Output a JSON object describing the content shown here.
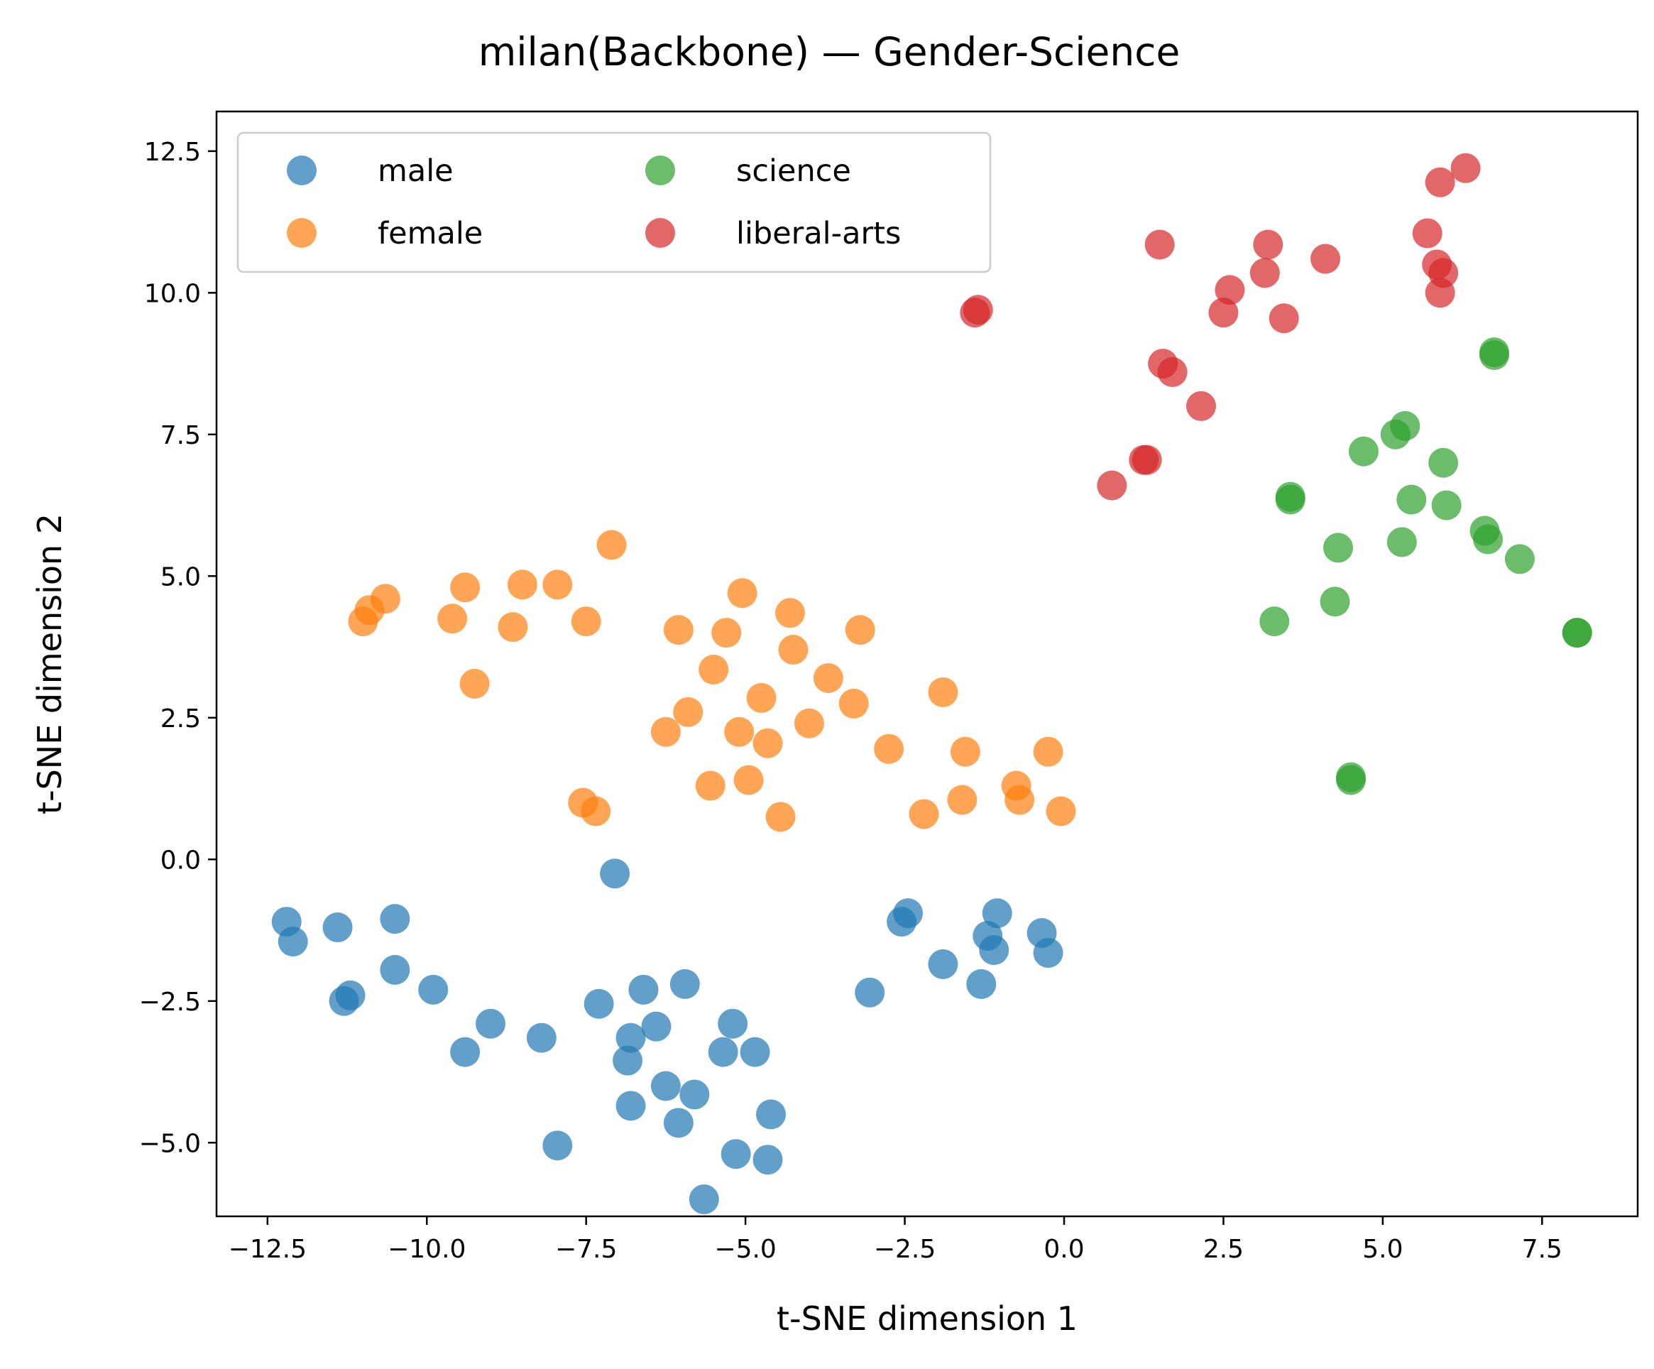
{
  "chart_data": {
    "type": "scatter",
    "title": "milan(Backbone) — Gender-Science",
    "xlabel": "t-SNE dimension 1",
    "ylabel": "t-SNE dimension 2",
    "xlim": [
      -13.3,
      9.0
    ],
    "ylim": [
      -6.3,
      13.2
    ],
    "xticks": [
      -12.5,
      -10.0,
      -7.5,
      -5.0,
      -2.5,
      0.0,
      2.5,
      5.0,
      7.5
    ],
    "xtick_labels": [
      "−12.5",
      "−10.0",
      "−7.5",
      "−5.0",
      "−2.5",
      "0.0",
      "2.5",
      "5.0",
      "7.5"
    ],
    "yticks": [
      -5.0,
      -2.5,
      0.0,
      2.5,
      5.0,
      7.5,
      10.0,
      12.5
    ],
    "ytick_labels": [
      "−5.0",
      "−2.5",
      "0.0",
      "2.5",
      "5.0",
      "7.5",
      "10.0",
      "12.5"
    ],
    "grid": false,
    "legend": {
      "placement": "top-left",
      "columns": 2
    },
    "series": [
      {
        "name": "male",
        "color": "#1f77b4",
        "points": [
          [
            -12.2,
            -1.1
          ],
          [
            -12.1,
            -1.45
          ],
          [
            -11.4,
            -1.2
          ],
          [
            -11.2,
            -2.4
          ],
          [
            -11.3,
            -2.5
          ],
          [
            -10.5,
            -1.05
          ],
          [
            -10.5,
            -1.95
          ],
          [
            -9.9,
            -2.3
          ],
          [
            -9.0,
            -2.9
          ],
          [
            -9.4,
            -3.4
          ],
          [
            -8.2,
            -3.15
          ],
          [
            -7.95,
            -5.05
          ],
          [
            -7.3,
            -2.55
          ],
          [
            -7.05,
            -0.25
          ],
          [
            -6.8,
            -3.15
          ],
          [
            -6.85,
            -3.55
          ],
          [
            -6.8,
            -4.35
          ],
          [
            -6.6,
            -2.3
          ],
          [
            -6.4,
            -2.95
          ],
          [
            -6.25,
            -4.0
          ],
          [
            -6.05,
            -4.65
          ],
          [
            -5.95,
            -2.2
          ],
          [
            -5.8,
            -4.15
          ],
          [
            -5.65,
            -6.0
          ],
          [
            -5.35,
            -3.4
          ],
          [
            -5.2,
            -2.9
          ],
          [
            -5.15,
            -5.2
          ],
          [
            -4.85,
            -3.4
          ],
          [
            -4.65,
            -5.3
          ],
          [
            -4.6,
            -4.5
          ],
          [
            -3.05,
            -2.35
          ],
          [
            -2.45,
            -0.95
          ],
          [
            -2.55,
            -1.1
          ],
          [
            -1.9,
            -1.85
          ],
          [
            -1.3,
            -2.2
          ],
          [
            -1.2,
            -1.35
          ],
          [
            -1.1,
            -1.6
          ],
          [
            -1.05,
            -0.95
          ],
          [
            -0.35,
            -1.3
          ],
          [
            -0.25,
            -1.65
          ]
        ]
      },
      {
        "name": "female",
        "color": "#ff7f0e",
        "points": [
          [
            -11.0,
            4.2
          ],
          [
            -10.9,
            4.4
          ],
          [
            -10.65,
            4.6
          ],
          [
            -9.6,
            4.25
          ],
          [
            -9.4,
            4.8
          ],
          [
            -9.25,
            3.1
          ],
          [
            -8.65,
            4.1
          ],
          [
            -8.5,
            4.85
          ],
          [
            -7.95,
            4.85
          ],
          [
            -7.5,
            4.2
          ],
          [
            -7.1,
            5.55
          ],
          [
            -7.55,
            1.0
          ],
          [
            -7.35,
            0.85
          ],
          [
            -6.25,
            2.25
          ],
          [
            -6.05,
            4.05
          ],
          [
            -5.9,
            2.6
          ],
          [
            -5.5,
            3.35
          ],
          [
            -5.55,
            1.3
          ],
          [
            -5.3,
            4.0
          ],
          [
            -5.1,
            2.25
          ],
          [
            -5.05,
            4.7
          ],
          [
            -4.95,
            1.4
          ],
          [
            -4.75,
            2.85
          ],
          [
            -4.65,
            2.05
          ],
          [
            -4.45,
            0.75
          ],
          [
            -4.3,
            4.35
          ],
          [
            -4.25,
            3.7
          ],
          [
            -4.0,
            2.4
          ],
          [
            -3.7,
            3.2
          ],
          [
            -3.3,
            2.75
          ],
          [
            -3.2,
            4.05
          ],
          [
            -2.75,
            1.95
          ],
          [
            -2.2,
            0.8
          ],
          [
            -1.9,
            2.95
          ],
          [
            -1.6,
            1.05
          ],
          [
            -1.55,
            1.9
          ],
          [
            -0.75,
            1.3
          ],
          [
            -0.7,
            1.05
          ],
          [
            -0.25,
            1.9
          ],
          [
            -0.05,
            0.85
          ]
        ]
      },
      {
        "name": "science",
        "color": "#2ca02c",
        "points": [
          [
            3.3,
            4.2
          ],
          [
            3.55,
            6.4
          ],
          [
            3.55,
            6.35
          ],
          [
            4.25,
            4.55
          ],
          [
            4.3,
            5.5
          ],
          [
            4.5,
            1.4
          ],
          [
            4.5,
            1.45
          ],
          [
            4.7,
            7.2
          ],
          [
            5.2,
            7.5
          ],
          [
            5.35,
            7.65
          ],
          [
            5.3,
            5.6
          ],
          [
            5.45,
            6.35
          ],
          [
            5.95,
            7.0
          ],
          [
            6.0,
            6.25
          ],
          [
            6.6,
            5.8
          ],
          [
            6.65,
            5.65
          ],
          [
            6.75,
            8.9
          ],
          [
            6.75,
            8.95
          ],
          [
            7.15,
            5.3
          ],
          [
            8.05,
            4.0
          ],
          [
            8.05,
            4.0
          ]
        ]
      },
      {
        "name": "liberal-arts",
        "color": "#d62728",
        "points": [
          [
            -1.4,
            9.65
          ],
          [
            -1.35,
            9.7
          ],
          [
            0.75,
            6.6
          ],
          [
            1.25,
            7.05
          ],
          [
            1.3,
            7.05
          ],
          [
            1.55,
            8.75
          ],
          [
            1.5,
            10.85
          ],
          [
            1.7,
            8.6
          ],
          [
            2.15,
            8.0
          ],
          [
            2.5,
            9.65
          ],
          [
            2.6,
            10.05
          ],
          [
            3.15,
            10.35
          ],
          [
            3.2,
            10.85
          ],
          [
            3.45,
            9.55
          ],
          [
            4.1,
            10.6
          ],
          [
            5.7,
            11.05
          ],
          [
            5.85,
            10.5
          ],
          [
            5.9,
            11.95
          ],
          [
            5.95,
            10.35
          ],
          [
            5.9,
            10.0
          ],
          [
            6.3,
            12.2
          ]
        ]
      }
    ]
  }
}
